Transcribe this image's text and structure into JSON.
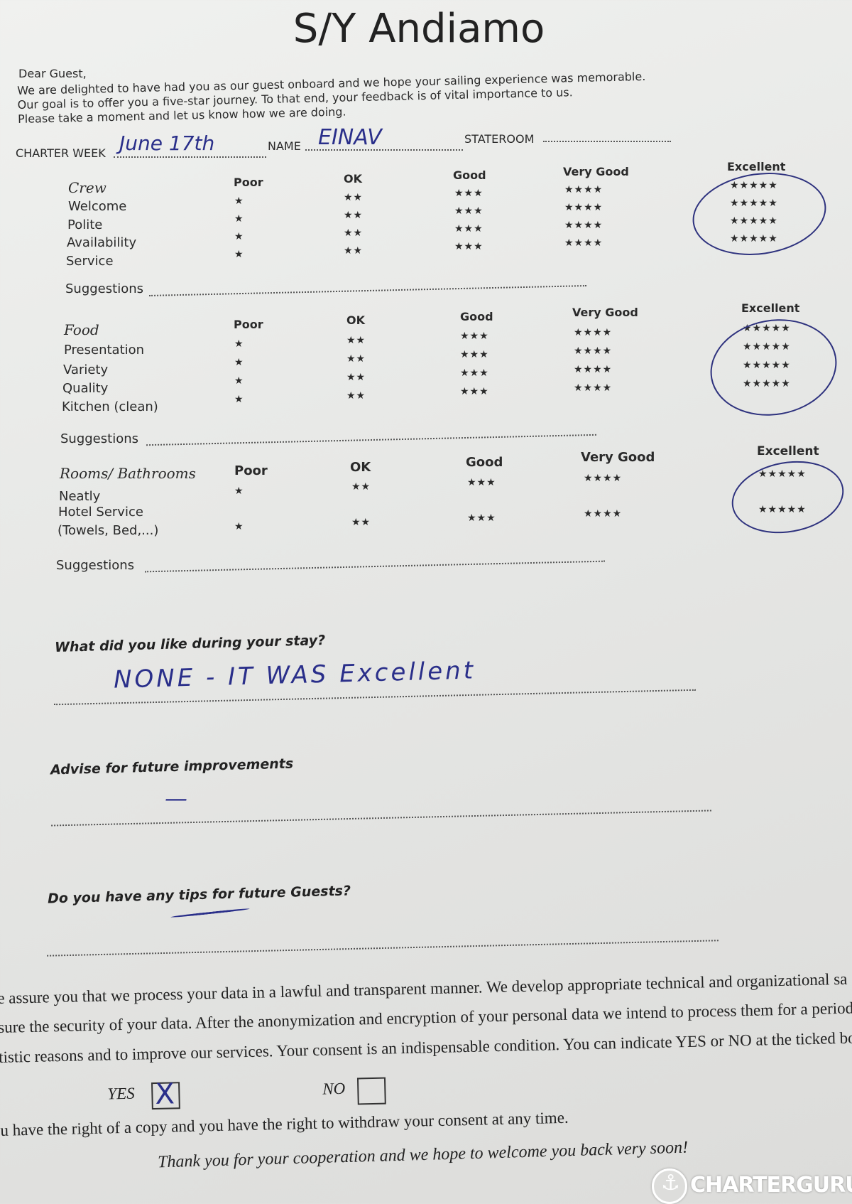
{
  "title": "S/Y Andiamo",
  "greeting": "Dear Guest,",
  "intro": [
    "We are delighted to have had you as our guest onboard and we hope your sailing experience was memorable.",
    "Our goal is to offer you a five-star journey. To that end, your feedback is of vital importance to us.",
    "Please take a moment and let us know how we are doing."
  ],
  "fields": {
    "charter_week_label": "CHARTER WEEK",
    "charter_week_value": "June 17th",
    "name_label": "NAME",
    "name_value": "EINAV",
    "stateroom_label": "STATEROOM",
    "stateroom_value": ""
  },
  "columns": [
    "Poor",
    "OK",
    "Good",
    "Very Good",
    "Excellent"
  ],
  "stars": [
    "★",
    "★★",
    "★★★",
    "★★★★",
    "★★★★★"
  ],
  "suggestions_label": "Suggestions",
  "sections": [
    {
      "title": "Crew",
      "items": [
        "Welcome",
        "Polite",
        "Availability",
        "Service"
      ],
      "selected": "Excellent"
    },
    {
      "title": "Food",
      "items": [
        "Presentation",
        "Variety",
        "Quality",
        "Kitchen (clean)"
      ],
      "selected": "Excellent"
    },
    {
      "title": "Rooms/ Bathrooms",
      "items": [
        "Neatly",
        "Hotel Service",
        "(Towels, Bed,...)"
      ],
      "selected": "Excellent"
    }
  ],
  "questions": [
    {
      "label": "What did you like during your stay?",
      "answer": "NONE - IT WAS Excellent"
    },
    {
      "label": "Advise for future improvements",
      "answer": "—"
    },
    {
      "label": "Do you have any tips for future Guests?",
      "answer": ""
    }
  ],
  "privacy": [
    "e assure you that we process your data in a lawful and transparent manner. We develop appropriate technical and organizational sa",
    "sure the security of your data. After the anonymization and encryption of your personal data we intend to process them for a period",
    "tistic reasons and to improve our services. Your consent is an indispensable condition. You can indicate YES or NO at the ticked boxe"
  ],
  "consent": {
    "yes_label": "YES",
    "no_label": "NO",
    "yes_checked": true,
    "no_checked": false,
    "yes_mark": "X"
  },
  "rights": "u have the right of a copy and you have the right to withdraw your consent at any time.",
  "closing": "Thank you for your cooperation and we hope to welcome you back very soon!",
  "watermark": "CHARTERGURU",
  "ink_color": "#2a2f8a"
}
